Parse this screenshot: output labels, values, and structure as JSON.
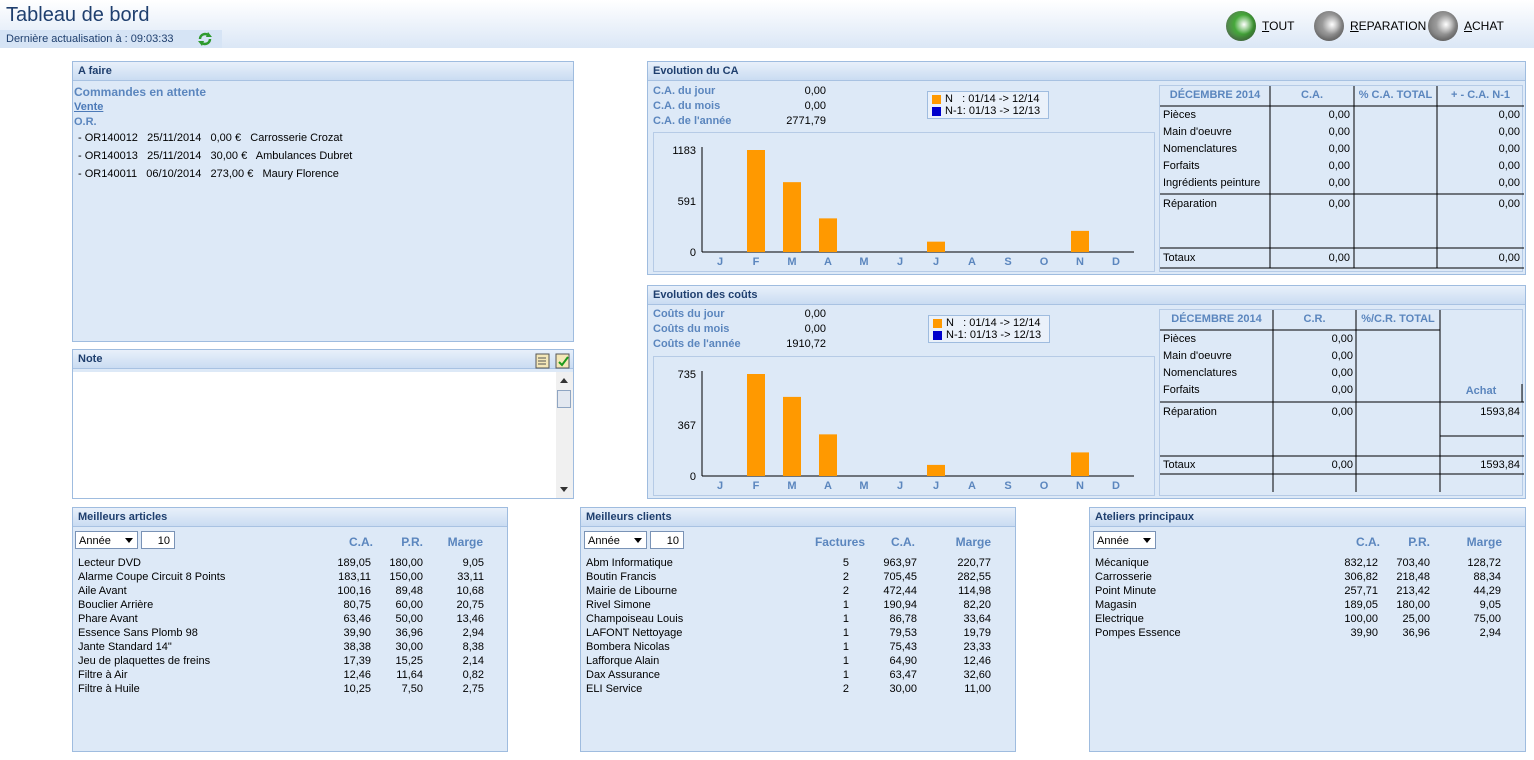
{
  "header": {
    "title": "Tableau de bord",
    "refresh_text": "Dernière actualisation à : 09:03:33",
    "buttons": [
      {
        "label_first": "T",
        "label_rest": "OUT",
        "color": "#45a83a"
      },
      {
        "label_first": "R",
        "label_rest": "EPARATION",
        "color": "#9a9a9a"
      },
      {
        "label_first": "A",
        "label_rest": "CHAT",
        "color": "#9a9a9a"
      }
    ]
  },
  "afaire": {
    "title": "A faire",
    "section": "Commandes en attente",
    "vente_link": "Vente",
    "or_label": "O.R.",
    "items": [
      "- OR140012   25/11/2014   0,00 €   Carrosserie Crozat",
      "- OR140013   25/11/2014   30,00 €   Ambulances Dubret",
      "- OR140011   06/10/2014   273,00 €   Maury Florence"
    ]
  },
  "note": {
    "title": "Note"
  },
  "ca": {
    "title": "Evolution du CA",
    "kpis": [
      {
        "label": "C.A. du jour",
        "value": "0,00"
      },
      {
        "label": "C.A. du mois",
        "value": "0,00"
      },
      {
        "label": "C.A. de l'année",
        "value": "2771,79"
      }
    ],
    "legend": [
      {
        "text": "N   : 01/14 -> 12/14",
        "color": "#ff9900"
      },
      {
        "text": "N-1: 01/13 -> 12/13",
        "color": "#0000cc"
      }
    ],
    "table": {
      "headers": [
        "DÉCEMBRE 2014",
        "C.A.",
        "% C.A. TOTAL",
        "+ - C.A. N-1"
      ],
      "rows": [
        {
          "label": "Pièces",
          "ca": "0,00",
          "pct": "",
          "diff": "0,00"
        },
        {
          "label": "Main d'oeuvre",
          "ca": "0,00",
          "pct": "",
          "diff": "0,00"
        },
        {
          "label": "Nomenclatures",
          "ca": "0,00",
          "pct": "",
          "diff": "0,00"
        },
        {
          "label": "Forfaits",
          "ca": "0,00",
          "pct": "",
          "diff": "0,00"
        },
        {
          "label": "Ingrédients peinture",
          "ca": "0,00",
          "pct": "",
          "diff": "0,00"
        }
      ],
      "reparation": {
        "label": "Réparation",
        "ca": "0,00",
        "diff": "0,00"
      },
      "totaux": {
        "label": "Totaux",
        "ca": "0,00",
        "diff": "0,00"
      }
    }
  },
  "couts": {
    "title": "Evolution des coûts",
    "kpis": [
      {
        "label": "Coûts du jour",
        "value": "0,00"
      },
      {
        "label": "Coûts du mois",
        "value": "0,00"
      },
      {
        "label": "Coûts de l'année",
        "value": "1910,72"
      }
    ],
    "legend": [
      {
        "text": "N   : 01/14 -> 12/14",
        "color": "#ff9900"
      },
      {
        "text": "N-1: 01/13 -> 12/13",
        "color": "#0000cc"
      }
    ],
    "table": {
      "headers": [
        "DÉCEMBRE 2014",
        "C.R.",
        "%/C.R. TOTAL"
      ],
      "achat_label": "Achat",
      "rows": [
        {
          "label": "Pièces",
          "cr": "0,00"
        },
        {
          "label": "Main d'oeuvre",
          "cr": "0,00"
        },
        {
          "label": "Nomenclatures",
          "cr": "0,00"
        },
        {
          "label": "Forfaits",
          "cr": "0,00"
        }
      ],
      "reparation": {
        "label": "Réparation",
        "cr": "0,00",
        "achat": "1593,84"
      },
      "totaux": {
        "label": "Totaux",
        "cr": "0,00",
        "achat": "1593,84"
      }
    }
  },
  "chart_data": [
    {
      "type": "bar",
      "categories": [
        "J",
        "F",
        "M",
        "A",
        "M",
        "J",
        "J",
        "A",
        "S",
        "O",
        "N",
        "D"
      ],
      "series": [
        {
          "name": "N   : 01/14 -> 12/14",
          "values": [
            0,
            1183,
            810,
            390,
            0,
            0,
            120,
            0,
            0,
            0,
            245,
            0
          ]
        }
      ],
      "yticks": [
        "1183",
        "591",
        "0"
      ],
      "ylim": [
        0,
        1183
      ]
    },
    {
      "type": "bar",
      "categories": [
        "J",
        "F",
        "M",
        "A",
        "M",
        "J",
        "J",
        "A",
        "S",
        "O",
        "N",
        "D"
      ],
      "series": [
        {
          "name": "N   : 01/14 -> 12/14",
          "values": [
            0,
            735,
            570,
            300,
            0,
            0,
            80,
            0,
            0,
            0,
            170,
            0
          ]
        }
      ],
      "yticks": [
        "735",
        "367",
        "0"
      ],
      "ylim": [
        0,
        735
      ]
    }
  ],
  "articles": {
    "title": "Meilleurs articles",
    "period": "Année",
    "count": "10",
    "headers": [
      "C.A.",
      "P.R.",
      "Marge"
    ],
    "rows": [
      [
        "Lecteur DVD",
        "189,05",
        "180,00",
        "9,05"
      ],
      [
        "Alarme Coupe Circuit 8 Points",
        "183,11",
        "150,00",
        "33,11"
      ],
      [
        "Aile Avant",
        "100,16",
        "89,48",
        "10,68"
      ],
      [
        "Bouclier Arrière",
        "80,75",
        "60,00",
        "20,75"
      ],
      [
        "Phare Avant",
        "63,46",
        "50,00",
        "13,46"
      ],
      [
        "Essence Sans Plomb 98",
        "39,90",
        "36,96",
        "2,94"
      ],
      [
        "Jante Standard 14\"",
        "38,38",
        "30,00",
        "8,38"
      ],
      [
        "Jeu de plaquettes de freins",
        "17,39",
        "15,25",
        "2,14"
      ],
      [
        "Filtre à Air",
        "12,46",
        "11,64",
        "0,82"
      ],
      [
        "Filtre à Huile",
        "10,25",
        "7,50",
        "2,75"
      ]
    ]
  },
  "clients": {
    "title": "Meilleurs clients",
    "period": "Année",
    "count": "10",
    "headers": [
      "Factures",
      "C.A.",
      "Marge"
    ],
    "rows": [
      [
        "Abm Informatique",
        "5",
        "963,97",
        "220,77"
      ],
      [
        "Boutin Francis",
        "2",
        "705,45",
        "282,55"
      ],
      [
        "Mairie de Libourne",
        "2",
        "472,44",
        "114,98"
      ],
      [
        "Rivel Simone",
        "1",
        "190,94",
        "82,20"
      ],
      [
        "Champoiseau Louis",
        "1",
        "86,78",
        "33,64"
      ],
      [
        "LAFONT Nettoyage",
        "1",
        "79,53",
        "19,79"
      ],
      [
        "Bombera Nicolas",
        "1",
        "75,43",
        "23,33"
      ],
      [
        "Lafforque Alain",
        "1",
        "64,90",
        "12,46"
      ],
      [
        "Dax Assurance",
        "1",
        "63,47",
        "32,60"
      ],
      [
        "ELI Service",
        "2",
        "30,00",
        "11,00"
      ]
    ]
  },
  "ateliers": {
    "title": "Ateliers principaux",
    "period": "Année",
    "headers": [
      "C.A.",
      "P.R.",
      "Marge"
    ],
    "rows": [
      [
        "Mécanique",
        "832,12",
        "703,40",
        "128,72"
      ],
      [
        "Carrosserie",
        "306,82",
        "218,48",
        "88,34"
      ],
      [
        "Point Minute",
        "257,71",
        "213,42",
        "44,29"
      ],
      [
        "Magasin",
        "189,05",
        "180,00",
        "9,05"
      ],
      [
        "Electrique",
        "100,00",
        "25,00",
        "75,00"
      ],
      [
        "Pompes Essence",
        "39,90",
        "36,96",
        "2,94"
      ]
    ]
  }
}
